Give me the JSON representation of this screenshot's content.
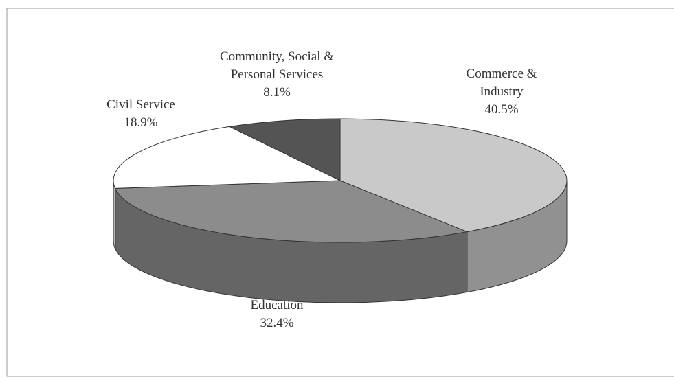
{
  "chart_data": {
    "type": "pie3d",
    "categories": [
      "Commerce & Industry",
      "Education",
      "Civil Service",
      "Community, Social & Personal Services"
    ],
    "values": [
      40.5,
      32.4,
      18.9,
      8.1
    ],
    "value_labels": [
      "40.5%",
      "32.4%",
      "18.9%",
      "8.1%"
    ],
    "colors": [
      "#c9c9c9",
      "#8c8c8c",
      "#ffffff",
      "#545454"
    ]
  }
}
